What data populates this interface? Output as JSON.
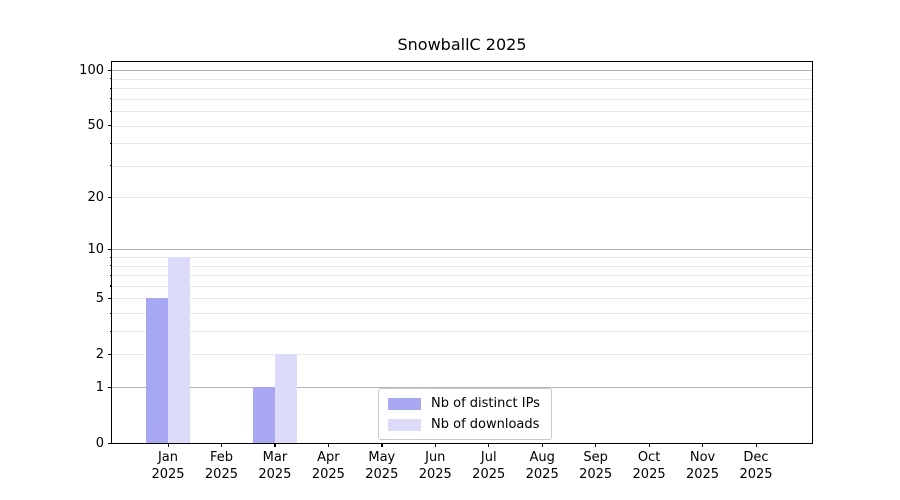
{
  "chart_data": {
    "type": "bar",
    "title": "SnowballC 2025",
    "year_label": "2025",
    "categories": [
      "Jan",
      "Feb",
      "Mar",
      "Apr",
      "May",
      "Jun",
      "Jul",
      "Aug",
      "Sep",
      "Oct",
      "Nov",
      "Dec"
    ],
    "series": [
      {
        "name": "Nb of distinct IPs",
        "color": "#a7a7f2",
        "values": [
          5,
          0,
          1,
          0,
          0,
          0,
          0,
          0,
          0,
          0,
          0,
          0
        ]
      },
      {
        "name": "Nb of downloads",
        "color": "#dcdcfa",
        "values": [
          9,
          0,
          2,
          0,
          0,
          0,
          0,
          0,
          0,
          0,
          0,
          0
        ]
      }
    ],
    "yscale": "log1p",
    "ylim": [
      0,
      111
    ],
    "yticks": [
      0,
      1,
      2,
      5,
      10,
      20,
      50,
      100
    ],
    "major_gridlines": [
      1,
      10,
      100
    ],
    "minor_gridlines": [
      2,
      3,
      4,
      5,
      6,
      7,
      8,
      9,
      20,
      30,
      40,
      50,
      60,
      70,
      80,
      90
    ],
    "minor_tick_values": [
      3,
      4,
      6,
      7,
      8,
      9,
      30,
      40,
      60,
      70,
      80,
      90
    ],
    "grid": "horizontal",
    "legend_position": "lower-center-inside",
    "colors": {
      "major_grid": "#b4b4b4",
      "minor_grid": "#e9e9e9",
      "axis": "#000000",
      "background": "#ffffff"
    }
  }
}
